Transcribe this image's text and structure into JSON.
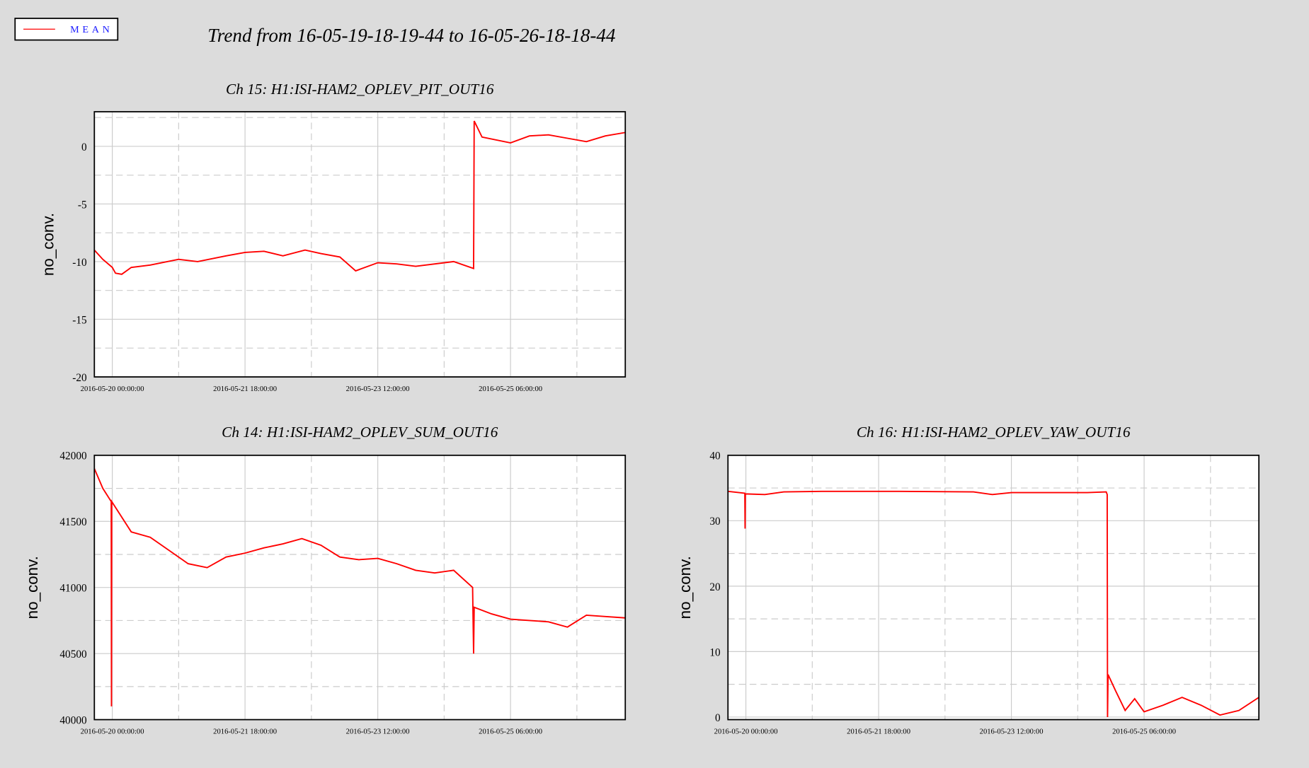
{
  "title": "Trend from 16-05-19-18-19-44 to 16-05-26-18-18-44",
  "chart_data": [
    {
      "type": "line",
      "title": "Ch 15: H1:ISI-HAM2_OPLEV_PIT_OUT16",
      "y_label": "no_conv.",
      "x": [
        "2016-05-19 18:19:44",
        "2016-05-19 21:00:00",
        "2016-05-20 00:00:00",
        "2016-05-20 01:00:00",
        "2016-05-20 03:00:00",
        "2016-05-20 06:00:00",
        "2016-05-20 12:00:00",
        "2016-05-20 21:00:00",
        "2016-05-21 03:00:00",
        "2016-05-21 12:00:00",
        "2016-05-21 18:00:00",
        "2016-05-22 00:00:00",
        "2016-05-22 06:00:00",
        "2016-05-22 13:00:00",
        "2016-05-22 18:00:00",
        "2016-05-23 00:00:00",
        "2016-05-23 05:00:00",
        "2016-05-23 12:00:00",
        "2016-05-23 18:00:00",
        "2016-05-24 00:00:00",
        "2016-05-24 12:00:00",
        "2016-05-24 18:20:00",
        "2016-05-24 18:30:00",
        "2016-05-24 21:00:00",
        "2016-05-25 06:00:00",
        "2016-05-25 12:00:00",
        "2016-05-25 18:00:00",
        "2016-05-26 00:00:00",
        "2016-05-26 06:00:00",
        "2016-05-26 12:00:00",
        "2016-05-26 18:18:44"
      ],
      "series": [
        {
          "name": "MEAN",
          "color": "#ff0000",
          "values": [
            -9.0,
            -9.8,
            -10.5,
            -11.0,
            -11.1,
            -10.5,
            -10.3,
            -9.8,
            -10.0,
            -9.5,
            -9.2,
            -9.1,
            -9.5,
            -9.0,
            -9.3,
            -9.6,
            -10.8,
            -10.1,
            -10.2,
            -10.4,
            -10.0,
            -10.6,
            2.2,
            0.8,
            0.3,
            0.9,
            1.0,
            0.7,
            0.4,
            0.9,
            1.2
          ]
        }
      ],
      "xlim": [
        "2016-05-19 18:19:44",
        "2016-05-26 18:18:44"
      ],
      "xticks": [
        "2016-05-20 00:00:00",
        "2016-05-21 18:00:00",
        "2016-05-23 12:00:00",
        "2016-05-25 06:00:00"
      ],
      "xminorticks": [
        "2016-05-20 21:00:00",
        "2016-05-22 15:00:00",
        "2016-05-24 09:00:00",
        "2016-05-26 03:00:00"
      ],
      "ylim": [
        -20,
        3
      ],
      "yticks": [
        0,
        -5,
        -10,
        -15,
        -20
      ],
      "yminorticks": [
        2.5,
        -2.5,
        -7.5,
        -12.5,
        -17.5
      ],
      "grid": true
    },
    {
      "type": "line",
      "title": "Ch 14: H1:ISI-HAM2_OPLEV_SUM_OUT16",
      "y_label": "no_conv.",
      "x": [
        "2016-05-19 18:19:44",
        "2016-05-19 21:00:00",
        "2016-05-19 23:40:00",
        "2016-05-19 23:45:00",
        "2016-05-19 23:50:00",
        "2016-05-20 06:00:00",
        "2016-05-20 12:00:00",
        "2016-05-20 18:00:00",
        "2016-05-21 00:00:00",
        "2016-05-21 06:00:00",
        "2016-05-21 12:00:00",
        "2016-05-21 18:00:00",
        "2016-05-22 00:00:00",
        "2016-05-22 06:00:00",
        "2016-05-22 12:00:00",
        "2016-05-22 18:00:00",
        "2016-05-23 00:00:00",
        "2016-05-23 06:00:00",
        "2016-05-23 12:00:00",
        "2016-05-23 18:00:00",
        "2016-05-24 00:00:00",
        "2016-05-24 06:00:00",
        "2016-05-24 12:00:00",
        "2016-05-24 18:00:00",
        "2016-05-24 18:20:00",
        "2016-05-24 18:30:00",
        "2016-05-25 00:00:00",
        "2016-05-25 06:00:00",
        "2016-05-25 12:00:00",
        "2016-05-25 18:00:00",
        "2016-05-26 00:00:00",
        "2016-05-26 06:00:00",
        "2016-05-26 12:00:00",
        "2016-05-26 18:18:44"
      ],
      "series": [
        {
          "name": "MEAN",
          "color": "#ff0000",
          "values": [
            41900,
            41750,
            41650,
            40100,
            41650,
            41420,
            41380,
            41280,
            41180,
            41150,
            41230,
            41260,
            41300,
            41330,
            41370,
            41320,
            41230,
            41210,
            41220,
            41180,
            41130,
            41110,
            41130,
            41000,
            40500,
            40850,
            40800,
            40760,
            40750,
            40740,
            40700,
            40790,
            40780,
            40770
          ]
        }
      ],
      "xlim": [
        "2016-05-19 18:19:44",
        "2016-05-26 18:18:44"
      ],
      "xticks": [
        "2016-05-20 00:00:00",
        "2016-05-21 18:00:00",
        "2016-05-23 12:00:00",
        "2016-05-25 06:00:00"
      ],
      "xminorticks": [
        "2016-05-20 21:00:00",
        "2016-05-22 15:00:00",
        "2016-05-24 09:00:00",
        "2016-05-26 03:00:00"
      ],
      "ylim": [
        40000,
        42000
      ],
      "yticks": [
        42000,
        41500,
        41000,
        40500,
        40000
      ],
      "yminorticks": [
        41750,
        41250,
        40750,
        40250
      ],
      "grid": true
    },
    {
      "type": "line",
      "title": "Ch 16: H1:ISI-HAM2_OPLEV_YAW_OUT16",
      "y_label": "no_conv.",
      "x": [
        "2016-05-19 18:19:44",
        "2016-05-19 23:40:00",
        "2016-05-19 23:45:00",
        "2016-05-19 23:50:00",
        "2016-05-20 06:00:00",
        "2016-05-20 12:00:00",
        "2016-05-21 00:00:00",
        "2016-05-22 00:00:00",
        "2016-05-23 00:00:00",
        "2016-05-23 06:00:00",
        "2016-05-23 12:00:00",
        "2016-05-24 12:00:00",
        "2016-05-24 18:00:00",
        "2016-05-24 18:20:00",
        "2016-05-24 18:25:00",
        "2016-05-24 18:35:00",
        "2016-05-24 21:00:00",
        "2016-05-25 00:00:00",
        "2016-05-25 03:00:00",
        "2016-05-25 06:00:00",
        "2016-05-25 12:00:00",
        "2016-05-25 18:00:00",
        "2016-05-26 00:00:00",
        "2016-05-26 06:00:00",
        "2016-05-26 12:00:00",
        "2016-05-26 18:18:44"
      ],
      "series": [
        {
          "name": "MEAN",
          "color": "#ff0000",
          "values": [
            34.5,
            34.2,
            28.8,
            34.1,
            34.0,
            34.4,
            34.5,
            34.5,
            34.4,
            34.0,
            34.3,
            34.3,
            34.4,
            34.0,
            0,
            6.5,
            4.0,
            1.0,
            2.8,
            0.8,
            1.8,
            3.0,
            1.8,
            0.3,
            1.0,
            3.0
          ]
        }
      ],
      "xlim": [
        "2016-05-19 18:19:44",
        "2016-05-26 18:18:44"
      ],
      "xticks": [
        "2016-05-20 00:00:00",
        "2016-05-21 18:00:00",
        "2016-05-23 12:00:00",
        "2016-05-25 06:00:00"
      ],
      "xminorticks": [
        "2016-05-20 21:00:00",
        "2016-05-22 15:00:00",
        "2016-05-24 09:00:00",
        "2016-05-26 03:00:00"
      ],
      "ylim": [
        -0.4,
        40
      ],
      "yticks": [
        40,
        30,
        20,
        10,
        0
      ],
      "yminorticks": [
        35,
        25,
        15,
        5
      ],
      "grid": true
    }
  ]
}
